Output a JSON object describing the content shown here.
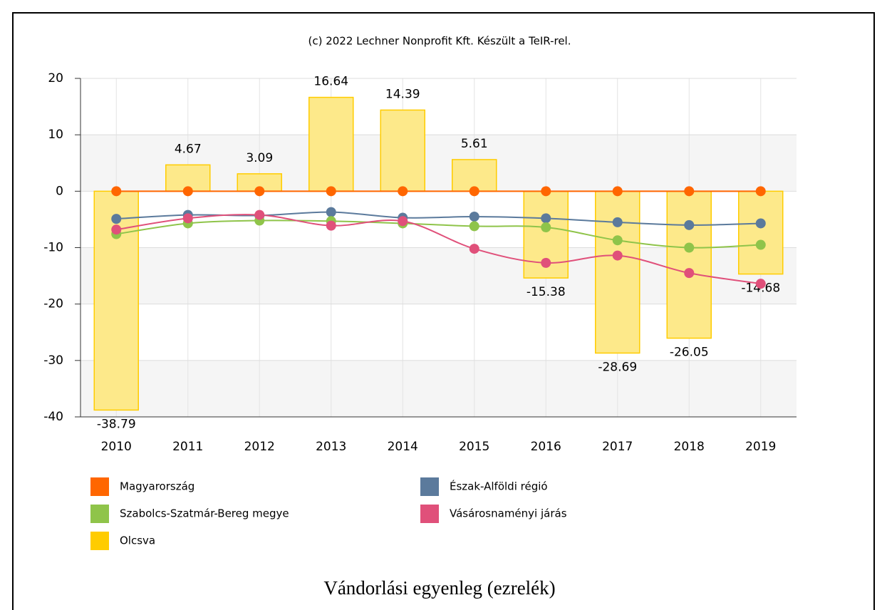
{
  "chart_data": {
    "type": "combo",
    "credits": "(c) 2022 Lechner Nonprofit Kft. Készült a TeIR-rel.",
    "title": "Vándorlási egyenleg (ezrelék)",
    "categories": [
      "2010",
      "2011",
      "2012",
      "2013",
      "2014",
      "2015",
      "2016",
      "2017",
      "2018",
      "2019"
    ],
    "ylim": [
      -40,
      20
    ],
    "yticks": [
      -40,
      -30,
      -20,
      -10,
      0,
      10,
      20
    ],
    "grid": true,
    "series": [
      {
        "name": "Magyarország",
        "type": "line",
        "color": "#ff6600",
        "values": [
          0,
          0,
          0,
          0,
          0,
          0,
          0,
          0,
          0,
          0
        ]
      },
      {
        "name": "Észak-Alföldi régió",
        "type": "line",
        "color": "#5b7a9c",
        "values": [
          -4.9,
          -4.2,
          -4.3,
          -3.7,
          -4.7,
          -4.5,
          -4.8,
          -5.5,
          -6,
          -5.7
        ]
      },
      {
        "name": "Szabolcs-Szatmár-Bereg megye",
        "type": "line",
        "color": "#8fc44a",
        "values": [
          -7.6,
          -5.7,
          -5.2,
          -5.3,
          -5.7,
          -6.2,
          -6.4,
          -8.7,
          -10,
          -9.5
        ]
      },
      {
        "name": "Vásárosnaményi járás",
        "type": "line",
        "color": "#e0507a",
        "values": [
          -6.8,
          -4.8,
          -4.2,
          -6.1,
          -5.3,
          -10.2,
          -12.7,
          -11.4,
          -14.5,
          -16.4
        ]
      },
      {
        "name": "Olcsva",
        "type": "bar",
        "color": "#ffcc00",
        "values": [
          -38.79,
          4.67,
          3.09,
          16.64,
          14.39,
          5.61,
          -15.38,
          -28.69,
          -26.05,
          -14.68
        ]
      }
    ]
  }
}
